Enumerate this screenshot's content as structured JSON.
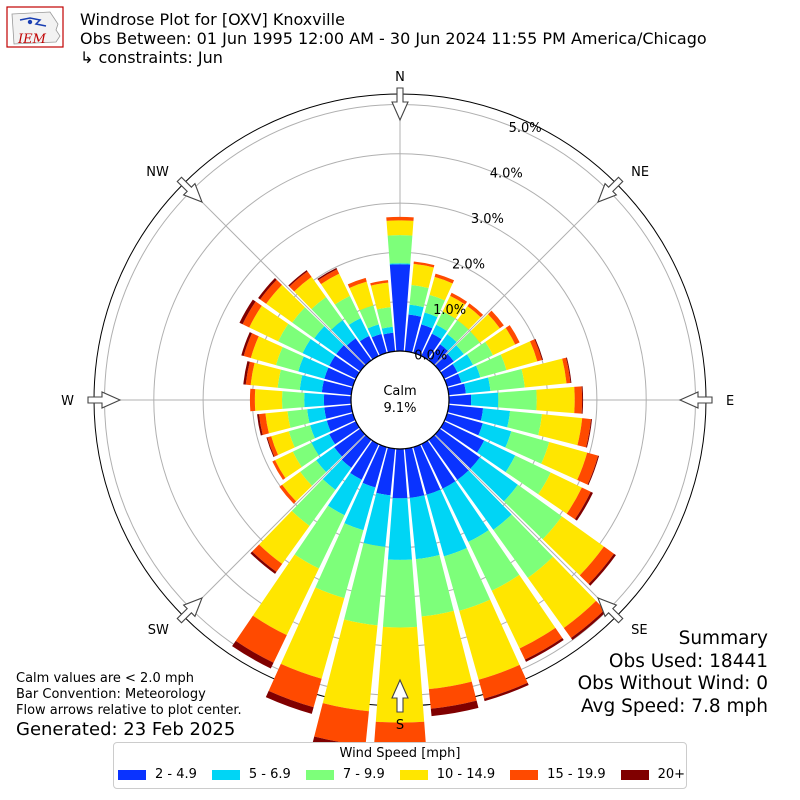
{
  "logo_text": "IEM",
  "title": {
    "line1": "Windrose Plot for [OXV] Knoxville",
    "line2": "Obs Between: 01 Jun 1995 12:00 AM - 30 Jun 2024 11:55 PM America/Chicago",
    "line3": " ↳ constraints: Jun"
  },
  "notes": {
    "calm_note": "Calm values are < 2.0 mph",
    "bar_convention": "Bar Convention: Meteorology",
    "flow_note": "Flow arrows relative to plot center.",
    "generated": "Generated: 23 Feb 2025"
  },
  "summary": {
    "heading": "Summary",
    "obs_used": "Obs Used: 18441",
    "obs_without_wind": "Obs Without Wind: 0",
    "avg_speed": "Avg Speed: 7.8 mph"
  },
  "legend": {
    "title": "Wind Speed [mph]",
    "items": [
      {
        "label": "2 - 4.9",
        "color": "#0a33ff"
      },
      {
        "label": "5 - 6.9",
        "color": "#00d5f5"
      },
      {
        "label": "7 - 9.9",
        "color": "#7dff7a"
      },
      {
        "label": "10 - 14.9",
        "color": "#ffe600"
      },
      {
        "label": "15 - 19.9",
        "color": "#ff4a00"
      },
      {
        "label": "20+",
        "color": "#800000"
      }
    ]
  },
  "chart_data": {
    "type": "windrose",
    "directions": [
      "N",
      "NE",
      "E",
      "SE",
      "S",
      "SW",
      "W",
      "NW"
    ],
    "radial_ticks": [
      "0.0%",
      "1.0%",
      "2.0%",
      "3.0%",
      "4.0%",
      "5.0%"
    ],
    "radial_range": [
      0,
      5
    ],
    "calm_label": "Calm",
    "calm_value": "9.1%",
    "bar_centers_deg": [
      0,
      10,
      20,
      30,
      40,
      50,
      60,
      70,
      80,
      90,
      100,
      110,
      120,
      130,
      140,
      150,
      160,
      170,
      180,
      190,
      200,
      210,
      220,
      230,
      240,
      250,
      260,
      270,
      280,
      290,
      300,
      310,
      320,
      330,
      340,
      350
    ],
    "speed_bins": [
      "2 - 4.9",
      "5 - 6.9",
      "7 - 9.9",
      "10 - 14.9",
      "15 - 19.9",
      "20+"
    ],
    "bin_colors": [
      "#0a33ff",
      "#00d5f5",
      "#7dff7a",
      "#ffe600",
      "#ff4a00",
      "#800000"
    ],
    "cumulative_percent": [
      [
        1.76,
        1.78,
        2.35,
        2.65,
        2.72,
        2.72
      ],
      [
        0.75,
        0.95,
        1.35,
        1.78,
        1.83,
        1.83
      ],
      [
        0.6,
        0.85,
        1.22,
        1.6,
        1.67,
        1.67
      ],
      [
        0.5,
        0.7,
        1.0,
        1.35,
        1.42,
        1.42
      ],
      [
        0.4,
        0.65,
        1.0,
        1.35,
        1.42,
        1.42
      ],
      [
        0.35,
        0.6,
        1.0,
        1.5,
        1.6,
        1.6
      ],
      [
        0.3,
        0.65,
        1.1,
        1.6,
        1.7,
        1.7
      ],
      [
        0.3,
        0.7,
        1.25,
        1.9,
        2.0,
        2.02
      ],
      [
        0.35,
        0.85,
        1.55,
        2.4,
        2.48,
        2.5
      ],
      [
        0.45,
        1.0,
        1.78,
        2.55,
        2.7,
        2.72
      ],
      [
        0.7,
        1.25,
        1.9,
        2.72,
        2.9,
        2.92
      ],
      [
        0.75,
        1.35,
        2.15,
        2.95,
        3.18,
        3.2
      ],
      [
        0.9,
        1.6,
        2.4,
        3.1,
        3.3,
        3.35
      ],
      [
        1.0,
        1.95,
        3.05,
        4.1,
        4.35,
        4.4
      ],
      [
        1.0,
        2.25,
        3.45,
        4.7,
        4.95,
        5.0
      ],
      [
        1.0,
        2.2,
        3.3,
        4.6,
        4.85,
        4.9
      ],
      [
        1.0,
        2.3,
        3.45,
        4.9,
        5.3,
        5.35
      ],
      [
        1.0,
        2.25,
        3.42,
        4.9,
        5.3,
        5.45
      ],
      [
        1.0,
        2.25,
        3.62,
        5.55,
        6.05,
        6.2
      ],
      [
        0.95,
        2.0,
        3.6,
        5.35,
        6.05,
        6.3
      ],
      [
        0.85,
        1.75,
        3.18,
        4.88,
        5.48,
        5.62
      ],
      [
        0.8,
        1.6,
        2.8,
        4.3,
        4.92,
        5.05
      ],
      [
        0.7,
        1.25,
        2.15,
        3.1,
        3.3,
        3.35
      ],
      [
        0.65,
        1.1,
        1.5,
        1.95,
        2.02,
        2.02
      ],
      [
        0.6,
        1.0,
        1.42,
        1.82,
        1.88,
        1.88
      ],
      [
        0.55,
        0.9,
        1.35,
        1.72,
        1.8,
        1.82
      ],
      [
        0.55,
        0.9,
        1.3,
        1.75,
        1.88,
        1.92
      ],
      [
        0.55,
        0.95,
        1.4,
        1.95,
        2.05,
        2.05
      ],
      [
        0.6,
        1.05,
        1.5,
        2.05,
        2.15,
        2.2
      ],
      [
        0.6,
        1.15,
        1.62,
        2.15,
        2.3,
        2.35
      ],
      [
        0.6,
        1.2,
        1.75,
        2.4,
        2.55,
        2.62
      ],
      [
        0.6,
        1.15,
        1.7,
        2.35,
        2.5,
        2.55
      ],
      [
        0.55,
        1.0,
        1.58,
        2.08,
        2.22,
        2.25
      ],
      [
        0.45,
        0.85,
        1.35,
        1.85,
        1.95,
        1.98
      ],
      [
        0.4,
        0.6,
        1.0,
        1.5,
        1.58,
        1.58
      ],
      [
        0.38,
        0.5,
        0.9,
        1.4,
        1.45,
        1.45
      ]
    ]
  }
}
